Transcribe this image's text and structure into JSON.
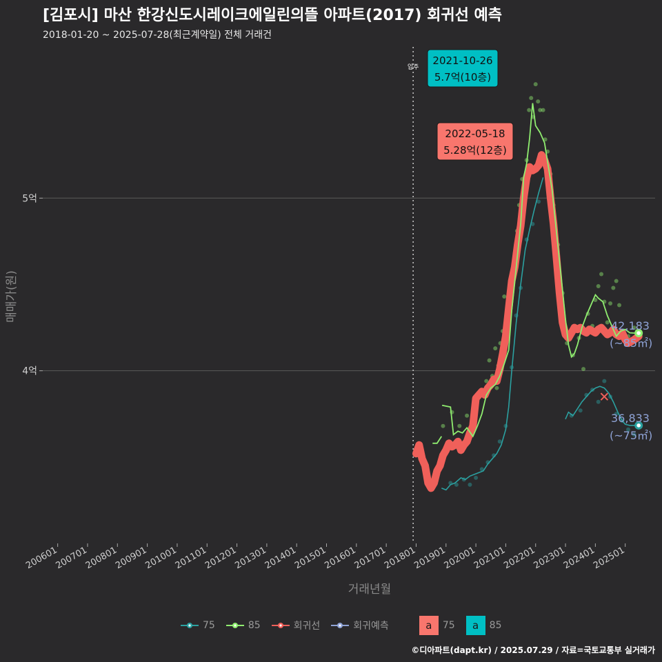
{
  "title": "[김포시] 마산 한강신도시레이크에일린의뜰 아파트(2017) 회귀선 예측",
  "subtitle": "2018-01-20 ~ 2025-07-28(최근계약일) 전체 거래건",
  "credit": "©디아파트(dapt.kr) / 2025.07.29 / 자료=국토교통부 실거래가",
  "colors": {
    "background": "#2a292b",
    "grid": "#5a5a5a",
    "area75": "#2ba1a1",
    "area85": "#90ee70",
    "regression": "#f0605a",
    "prediction": "#8fa3d6",
    "annotation_text": "#8fa3d6"
  },
  "legend": {
    "items": [
      {
        "label": "75",
        "color": "#2ba1a1"
      },
      {
        "label": "85",
        "color": "#90ee70"
      },
      {
        "label": "회귀선",
        "color": "#f0605a"
      },
      {
        "label": "회귀예측",
        "color": "#8fa3d6"
      }
    ],
    "boxes": [
      {
        "glyph": "a",
        "label": "75",
        "color": "#f8766d"
      },
      {
        "glyph": "a",
        "label": "85",
        "color": "#00bfc4"
      }
    ]
  },
  "chart_data": {
    "type": "line",
    "title": "[김포시] 마산 한강신도시레이크에일린의뜰 아파트(2017) 회귀선 예측",
    "xlabel": "거래년월",
    "ylabel": "매매가(원)",
    "x_ticks": [
      "200601",
      "200701",
      "200801",
      "200901",
      "201001",
      "201101",
      "201201",
      "201301",
      "201401",
      "201501",
      "201601",
      "201701",
      "201801",
      "201901",
      "202001",
      "202101",
      "202201",
      "202301",
      "202401",
      "202501"
    ],
    "y_ticks": [
      {
        "value": 40000,
        "label": "4억"
      },
      {
        "value": 50000,
        "label": "5억"
      }
    ],
    "xlim": [
      2005.5,
      2026.0
    ],
    "ylim": [
      30000,
      59000
    ],
    "move_in": {
      "x": 2017.9,
      "label": "입주"
    },
    "series": [
      {
        "name": "85",
        "color": "#90ee70",
        "x": [
          2018.55,
          2018.7,
          2018.85,
          2018.87,
          2019.15,
          2019.25,
          2019.4,
          2019.55,
          2019.7,
          2019.9,
          2020.05,
          2020.2,
          2020.35,
          2020.5,
          2020.65,
          2020.8,
          2020.95,
          2021.1,
          2021.2,
          2021.35,
          2021.5,
          2021.6,
          2021.7,
          2021.8,
          2021.9,
          2022.0,
          2022.15,
          2022.3,
          2022.4,
          2022.55,
          2022.7,
          2022.85,
          2023.0,
          2023.1,
          2023.2,
          2023.3,
          2023.4,
          2023.55,
          2023.7,
          2023.85,
          2024.0,
          2024.1,
          2024.25,
          2024.4,
          2024.55,
          2024.7,
          2024.85,
          2025.0,
          2025.15,
          2025.3,
          2025.45
        ],
        "values": [
          35800,
          35800,
          36200,
          38000,
          37900,
          36300,
          36500,
          36400,
          36700,
          36200,
          36800,
          37500,
          38600,
          39000,
          39200,
          39700,
          40400,
          41200,
          43500,
          46000,
          48500,
          51200,
          52000,
          53500,
          55500,
          54200,
          53800,
          53200,
          52100,
          50500,
          48000,
          45500,
          43000,
          41500,
          40800,
          41000,
          41500,
          42500,
          43200,
          43800,
          44400,
          44200,
          44000,
          43200,
          42600,
          42000,
          42300,
          42400,
          42200,
          42183,
          42183
        ]
      },
      {
        "name": "75",
        "color": "#2ba1a1",
        "x": [
          2018.85,
          2019.0,
          2019.15,
          2019.3,
          2019.5,
          2019.65,
          2019.8,
          2019.95,
          2020.1,
          2020.25,
          2020.4,
          2020.55,
          2020.7,
          2020.85,
          2021.0,
          2021.1,
          2021.2,
          2021.35,
          2021.5,
          2021.65,
          2021.8,
          2021.95,
          2022.1,
          2022.25,
          2023.0,
          2023.1,
          2023.25,
          2023.4,
          2023.55,
          2023.7,
          2023.85,
          2024.0,
          2024.15,
          2024.3,
          2024.45,
          2024.6,
          2024.75,
          2024.9,
          2025.0,
          2025.15,
          2025.3,
          2025.45
        ],
        "values": [
          33200,
          33100,
          33400,
          33500,
          33800,
          33700,
          33900,
          34000,
          34100,
          34200,
          34600,
          34900,
          35200,
          35700,
          36600,
          37900,
          40000,
          42800,
          45000,
          47000,
          48200,
          49300,
          50300,
          51200,
          37200,
          37600,
          37400,
          37800,
          38200,
          38500,
          38800,
          39000,
          39100,
          39000,
          38700,
          38200,
          37600,
          37100,
          36900,
          36833,
          36833,
          36833
        ]
      },
      {
        "name": "회귀선",
        "color": "#f0605a",
        "x": [
          2018.0,
          2018.1,
          2018.2,
          2018.3,
          2018.4,
          2018.5,
          2018.6,
          2018.7,
          2018.8,
          2018.9,
          2019.0,
          2019.1,
          2019.2,
          2019.3,
          2019.4,
          2019.5,
          2019.6,
          2019.7,
          2019.8,
          2019.9,
          2020.0,
          2020.1,
          2020.2,
          2020.3,
          2020.4,
          2020.5,
          2020.6,
          2020.7,
          2020.8,
          2020.9,
          2021.0,
          2021.1,
          2021.2,
          2021.3,
          2021.4,
          2021.5,
          2021.6,
          2021.7,
          2021.8,
          2021.9,
          2022.0,
          2022.1,
          2022.2,
          2022.3,
          2022.4,
          2022.5,
          2022.6,
          2022.7,
          2022.8,
          2022.9,
          2023.0,
          2023.1,
          2023.2,
          2023.3,
          2023.4,
          2023.5,
          2023.6,
          2023.7,
          2023.8,
          2023.9,
          2024.0,
          2024.1,
          2024.2,
          2024.3,
          2024.4,
          2024.5,
          2024.6,
          2024.7,
          2024.8,
          2024.9,
          2025.0,
          2025.1,
          2025.2,
          2025.3,
          2025.45
        ],
        "values": [
          35200,
          35700,
          34900,
          34500,
          33500,
          33200,
          33500,
          34200,
          34500,
          35100,
          35400,
          35800,
          35600,
          35700,
          35900,
          35400,
          35700,
          35900,
          36400,
          36800,
          38400,
          38600,
          38800,
          38600,
          39000,
          39200,
          39500,
          39400,
          40100,
          41000,
          42000,
          43600,
          45200,
          46000,
          47300,
          48400,
          50000,
          51200,
          51800,
          51600,
          51700,
          51900,
          52500,
          52200,
          51700,
          50000,
          48500,
          46500,
          44500,
          42800,
          42100,
          41900,
          42200,
          42500,
          42400,
          42500,
          42300,
          42200,
          42400,
          42300,
          42200,
          42400,
          42500,
          42300,
          42100,
          42200,
          42400,
          42100,
          42000,
          42200,
          41800,
          41600,
          41700,
          41800,
          42000
        ]
      }
    ],
    "scatter85": {
      "color": "#90ee70",
      "x": [
        2018.9,
        2019.2,
        2019.45,
        2019.7,
        2019.95,
        2020.15,
        2020.35,
        2020.45,
        2020.55,
        2020.65,
        2020.7,
        2020.75,
        2020.82,
        2020.9,
        2020.95,
        2021.05,
        2021.12,
        2021.2,
        2021.3,
        2021.38,
        2021.45,
        2021.55,
        2021.62,
        2021.7,
        2021.78,
        2021.85,
        2021.92,
        2022.0,
        2022.08,
        2022.15,
        2022.25,
        2022.32,
        2022.4,
        2022.5,
        2022.6,
        2022.75,
        2022.9,
        2023.05,
        2023.25,
        2023.45,
        2023.6,
        2023.75,
        2023.9,
        2024.0,
        2024.1,
        2024.2,
        2024.3,
        2024.4,
        2024.5,
        2024.6,
        2024.7,
        2024.8,
        2024.9,
        2025.0,
        2025.1,
        2025.2,
        2025.3,
        2025.4,
        2025.45
      ],
      "values": [
        36800,
        37600,
        36800,
        37400,
        38200,
        38700,
        39400,
        40600,
        39700,
        41300,
        39000,
        40300,
        41600,
        42300,
        44300,
        42900,
        44600,
        45400,
        46800,
        48100,
        49600,
        51100,
        50600,
        52200,
        55100,
        55800,
        54700,
        56600,
        55600,
        55100,
        55100,
        53400,
        52700,
        51400,
        49600,
        47300,
        44500,
        41600,
        40900,
        41900,
        40100,
        43300,
        42600,
        44100,
        44900,
        45600,
        44000,
        42800,
        43900,
        44800,
        45200,
        43800,
        42200,
        41800,
        42000,
        41800,
        42500,
        42300,
        42000
      ]
    },
    "scatter75": {
      "color": "#2ba1a1",
      "x": [
        2019.15,
        2019.35,
        2019.6,
        2019.8,
        2020.0,
        2020.2,
        2020.4,
        2020.6,
        2020.8,
        2021.0,
        2021.2,
        2021.35,
        2021.5,
        2021.7,
        2021.9,
        2022.1,
        2023.2,
        2023.5,
        2023.7,
        2023.9,
        2024.1,
        2024.3,
        2024.5,
        2024.7,
        2024.9,
        2025.1,
        2025.3
      ],
      "values": [
        33500,
        33400,
        33700,
        33400,
        33800,
        34300,
        34700,
        35100,
        35900,
        36800,
        40200,
        43200,
        44800,
        47600,
        48500,
        49800,
        37400,
        37700,
        38600,
        38900,
        38200,
        39400,
        38500,
        37500,
        37100,
        36600,
        36300
      ]
    },
    "regression_cross": {
      "x": 2024.3,
      "y": 38500
    },
    "end_labels": [
      {
        "series": "85",
        "x": 2025.45,
        "value": 42183,
        "label": "42,183",
        "sub": "(~85㎡)"
      },
      {
        "series": "75",
        "x": 2025.45,
        "value": 36833,
        "label": "36,833",
        "sub": "(~75㎡)"
      }
    ],
    "callouts": [
      {
        "date": "2021-10-26",
        "text": "5.7억(10층)",
        "x": 2021.82,
        "value": 57000,
        "color": "#00bfc4"
      },
      {
        "date": "2022-05-18",
        "text": "5.28억(12층)",
        "x": 2022.38,
        "value": 52800,
        "color": "#f8766d"
      }
    ]
  }
}
